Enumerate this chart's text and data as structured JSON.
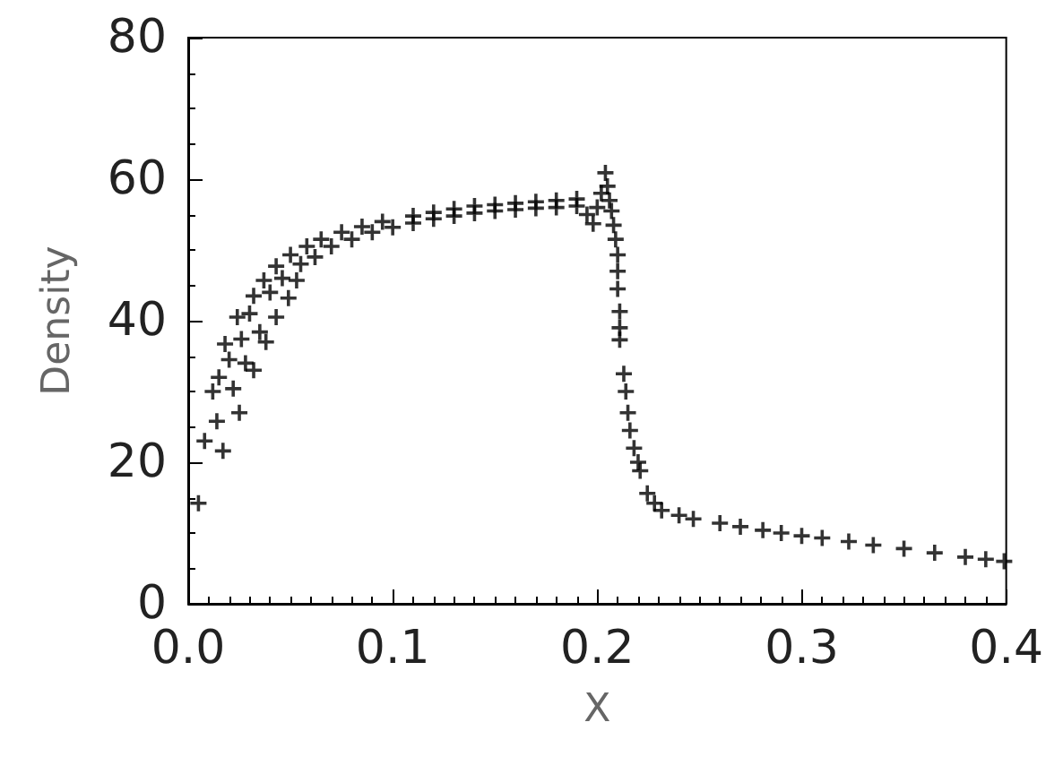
{
  "chart_data": {
    "type": "scatter",
    "xlabel": "X",
    "ylabel": "Density",
    "marker": "cross",
    "grid": false,
    "xlim": [
      0,
      0.4
    ],
    "xticks": [
      {
        "value": 0,
        "label": "0.0"
      },
      0.1,
      0.2,
      0.3,
      0.4
    ],
    "ylim": [
      0,
      80
    ],
    "yticks": [
      0,
      20,
      40,
      60,
      80
    ],
    "series": [
      {
        "color": "#000000",
        "x": [
          0.005,
          0.008,
          0.012,
          0.014,
          0.015,
          0.017,
          0.018,
          0.02,
          0.022,
          0.024,
          0.025,
          0.026,
          0.028,
          0.03,
          0.032,
          0.032,
          0.035,
          0.037,
          0.038,
          0.04,
          0.043,
          0.043,
          0.046,
          0.049,
          0.05,
          0.053,
          0.055,
          0.058,
          0.062,
          0.065,
          0.07,
          0.075,
          0.08,
          0.085,
          0.09,
          0.095,
          0.1,
          0.11,
          0.11,
          0.12,
          0.12,
          0.13,
          0.13,
          0.14,
          0.14,
          0.15,
          0.15,
          0.16,
          0.16,
          0.17,
          0.17,
          0.18,
          0.18,
          0.19,
          0.19,
          0.195,
          0.198,
          0.2,
          0.202,
          0.204,
          0.205,
          0.206,
          0.207,
          0.208,
          0.209,
          0.21,
          0.21,
          0.21,
          0.211,
          0.211,
          0.211,
          0.213,
          0.214,
          0.215,
          0.216,
          0.218,
          0.22,
          0.221,
          0.2245,
          0.228,
          0.2315,
          0.24,
          0.247,
          0.26,
          0.27,
          0.281,
          0.29,
          0.3,
          0.31,
          0.323,
          0.335,
          0.35,
          0.365,
          0.38,
          0.39,
          0.399
        ],
        "values": [
          14.2,
          23,
          30,
          25.8,
          32,
          21.6,
          36.7,
          34.5,
          30.4,
          40.5,
          27,
          37.4,
          34,
          41,
          33,
          43.5,
          38.4,
          45.7,
          37,
          44,
          40.5,
          47.7,
          46,
          43.2,
          49.3,
          45.7,
          48,
          50.5,
          49,
          51.5,
          50.5,
          52.5,
          51.5,
          53.3,
          52.5,
          54,
          53.2,
          54.8,
          53.8,
          55.3,
          54.4,
          55.8,
          54.8,
          56.2,
          55.2,
          56.4,
          55.5,
          56.6,
          55.7,
          56.8,
          55.9,
          57,
          56,
          57.2,
          56.2,
          55,
          53.7,
          56,
          58,
          60.9,
          59,
          57,
          55.5,
          53.5,
          51.5,
          49.3,
          47,
          44.5,
          41.3,
          39,
          37.3,
          32.5,
          30,
          27,
          24.5,
          22,
          20,
          18.8,
          15.6,
          14.2,
          13.2,
          12.5,
          12,
          11.4,
          10.9,
          10.4,
          10,
          9.6,
          9.3,
          8.8,
          8.3,
          7.8,
          7.2,
          6.6,
          6.3,
          6
        ]
      }
    ]
  }
}
